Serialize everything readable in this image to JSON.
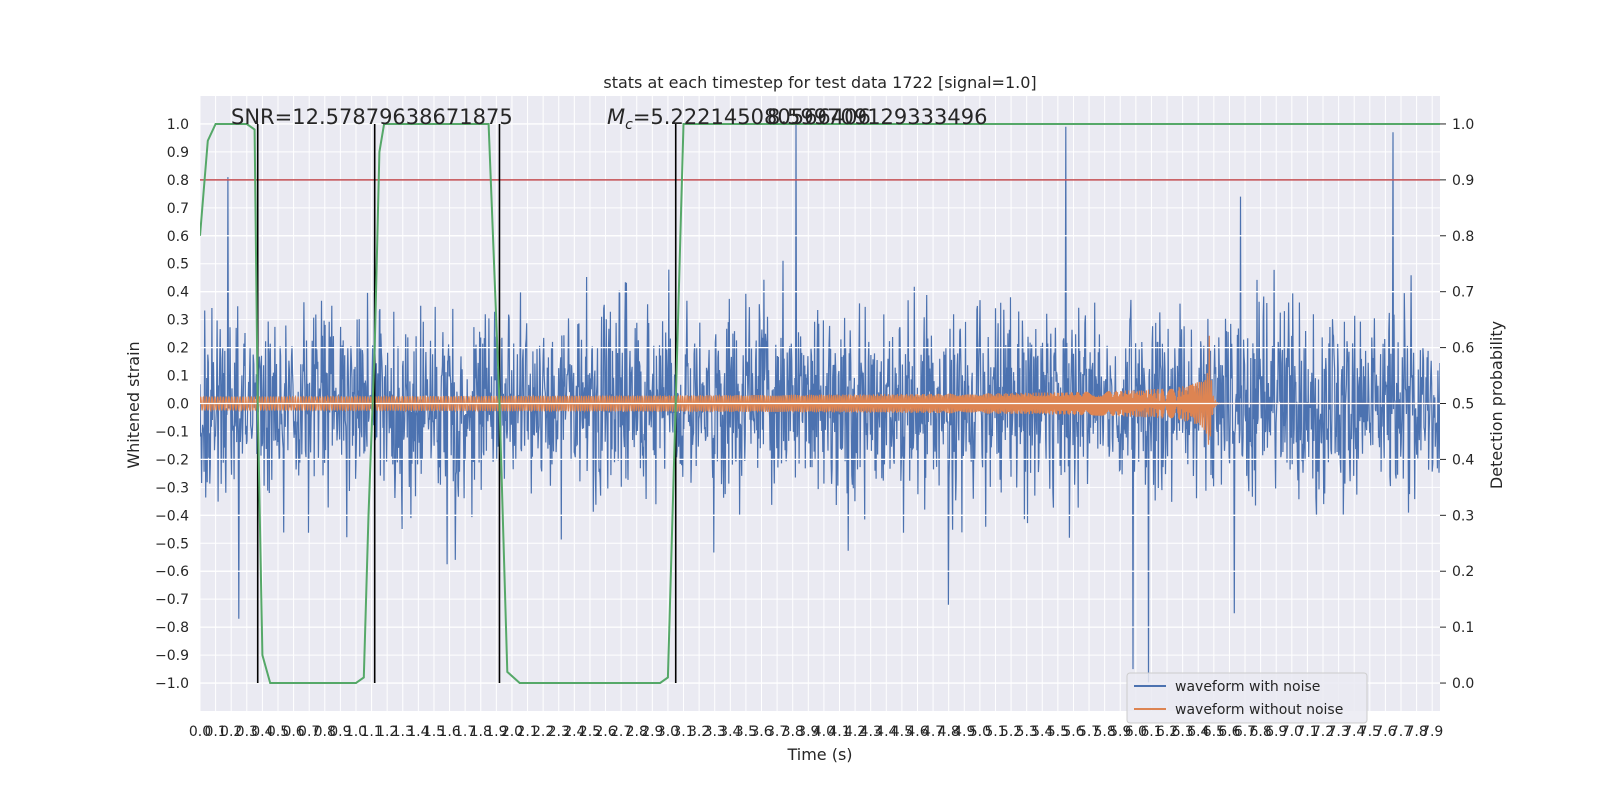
{
  "chart_data": {
    "type": "line",
    "title": "stats at each timestep for test data 1722 [signal=1.0]",
    "xlabel": "Time (s)",
    "ylabel_left": "Whitened strain",
    "ylabel_right": "Detection probability",
    "xlim": [
      0,
      7.95
    ],
    "ylim_left": [
      -1.1,
      1.1
    ],
    "ylim_right": [
      -0.05,
      1.05
    ],
    "x_ticks": [
      "0.0",
      "0.1",
      "0.2",
      "0.3",
      "0.4",
      "0.5",
      "0.6",
      "0.7",
      "0.8",
      "0.9",
      "1.0",
      "1.1",
      "1.2",
      "1.3",
      "1.4",
      "1.5",
      "1.6",
      "1.7",
      "1.8",
      "1.9",
      "2.0",
      "2.1",
      "2.2",
      "2.3",
      "2.4",
      "2.5",
      "2.6",
      "2.7",
      "2.8",
      "2.9",
      "3.0",
      "3.1",
      "3.2",
      "3.3",
      "3.4",
      "3.5",
      "3.6",
      "3.7",
      "3.8",
      "3.9",
      "4.0",
      "4.1",
      "4.2",
      "4.3",
      "4.4",
      "4.5",
      "4.6",
      "4.7",
      "4.8",
      "4.9",
      "5.0",
      "5.1",
      "5.2",
      "5.3",
      "5.4",
      "5.5",
      "5.6",
      "5.7",
      "5.8",
      "5.9",
      "6.0",
      "6.1",
      "6.2",
      "6.3",
      "6.4",
      "6.5",
      "6.6",
      "6.7",
      "6.8",
      "6.9",
      "7.0",
      "7.1",
      "7.2",
      "7.3",
      "7.4",
      "7.5",
      "7.6",
      "7.7",
      "7.8",
      "7.9"
    ],
    "y_ticks_left": [
      "−1.0",
      "−0.9",
      "−0.8",
      "−0.7",
      "−0.6",
      "−0.5",
      "−0.4",
      "−0.3",
      "−0.2",
      "−0.1",
      "0.0",
      "0.1",
      "0.2",
      "0.3",
      "0.4",
      "0.5",
      "0.6",
      "0.7",
      "0.8",
      "0.9",
      "1.0"
    ],
    "y_ticks_right": [
      "0.0",
      "0.1",
      "0.2",
      "0.3",
      "0.4",
      "0.5",
      "0.6",
      "0.7",
      "0.8",
      "0.9",
      "1.0"
    ],
    "annotations": {
      "snr": "SNR=12.57879638671875",
      "mc_symbol": "M",
      "mc_subscript": "c",
      "mc_value": "=5.222145080566406",
      "mc_overlap": "8.599709129333496"
    },
    "threshold_right": 0.9,
    "vertical_markers": [
      0.37,
      1.12,
      1.92,
      3.05
    ],
    "series": [
      {
        "name": "waveform with noise",
        "color": "#4c72b0",
        "description_env_max": 0.5,
        "spikes_up": [
          [
            0.18,
            0.81
          ],
          [
            3.82,
            1.0
          ],
          [
            5.55,
            0.99
          ],
          [
            7.65,
            0.97
          ],
          [
            1.12,
            0.74
          ],
          [
            6.67,
            0.74
          ]
        ],
        "spikes_down": [
          [
            0.25,
            -0.77
          ],
          [
            5.98,
            -0.95
          ],
          [
            6.08,
            -1.0
          ],
          [
            6.63,
            -0.75
          ],
          [
            4.8,
            -0.72
          ]
        ]
      },
      {
        "name": "waveform without noise",
        "color": "#dd8452",
        "chirp_start_amp": 0.025,
        "merger_time": 6.47,
        "merger_amp": 0.27
      },
      {
        "name": "Detection probability",
        "color": "#55a868",
        "axis": "right",
        "x": [
          0,
          0.05,
          0.1,
          0.3,
          0.35,
          0.37,
          0.4,
          0.45,
          0.5,
          1.0,
          1.05,
          1.08,
          1.12,
          1.15,
          1.18,
          1.85,
          1.92,
          1.97,
          2.05,
          2.95,
          3.0,
          3.05,
          3.1,
          7.95
        ],
        "y": [
          0.8,
          0.97,
          1.0,
          1.0,
          0.99,
          0.5,
          0.05,
          0.0,
          0.0,
          0.0,
          0.01,
          0.3,
          0.6,
          0.95,
          1.0,
          1.0,
          0.5,
          0.02,
          0.0,
          0.0,
          0.01,
          0.5,
          1.0,
          1.0
        ]
      }
    ],
    "legend": {
      "position": "lower-right",
      "entries": [
        "waveform with noise",
        "waveform without noise"
      ]
    },
    "style": {
      "plot_bg": "#eaeaf2",
      "grid": "#ffffff",
      "threshold_color": "#c44e52",
      "marker_color": "#000000"
    }
  }
}
